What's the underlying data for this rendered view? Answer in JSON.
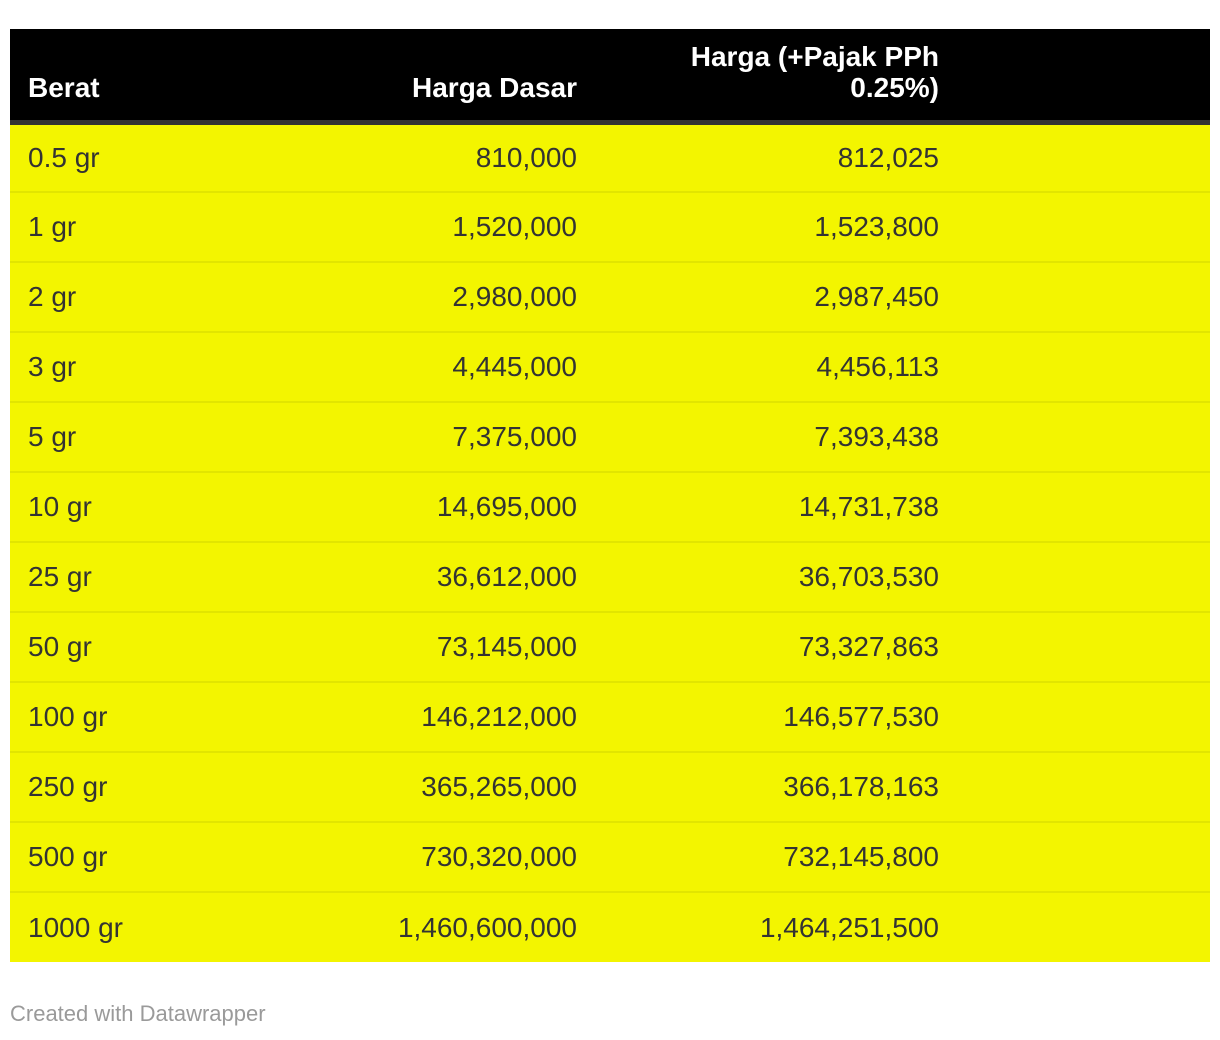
{
  "table": {
    "columns": [
      {
        "label": "Berat",
        "align": "left"
      },
      {
        "label": "Harga Dasar",
        "align": "right"
      },
      {
        "label": "Harga (+Pajak PPh\n0.25%)",
        "align": "right"
      }
    ],
    "rows": [
      {
        "berat": "0.5 gr",
        "harga_dasar": "810,000",
        "harga_pajak": "812,025"
      },
      {
        "berat": "1 gr",
        "harga_dasar": "1,520,000",
        "harga_pajak": "1,523,800"
      },
      {
        "berat": "2 gr",
        "harga_dasar": "2,980,000",
        "harga_pajak": "2,987,450"
      },
      {
        "berat": "3 gr",
        "harga_dasar": "4,445,000",
        "harga_pajak": "4,456,113"
      },
      {
        "berat": "5 gr",
        "harga_dasar": "7,375,000",
        "harga_pajak": "7,393,438"
      },
      {
        "berat": "10 gr",
        "harga_dasar": "14,695,000",
        "harga_pajak": "14,731,738"
      },
      {
        "berat": "25 gr",
        "harga_dasar": "36,612,000",
        "harga_pajak": "36,703,530"
      },
      {
        "berat": "50 gr",
        "harga_dasar": "73,145,000",
        "harga_pajak": "73,327,863"
      },
      {
        "berat": "100 gr",
        "harga_dasar": "146,212,000",
        "harga_pajak": "146,577,530"
      },
      {
        "berat": "250 gr",
        "harga_dasar": "365,265,000",
        "harga_pajak": "366,178,163"
      },
      {
        "berat": "500 gr",
        "harga_dasar": "730,320,000",
        "harga_pajak": "732,145,800"
      },
      {
        "berat": "1000 gr",
        "harga_dasar": "1,460,600,000",
        "harga_pajak": "1,464,251,500"
      }
    ]
  },
  "footer": {
    "credit": "Created with Datawrapper"
  },
  "colors": {
    "header_bg": "#000000",
    "header_text": "#ffffff",
    "header_border": "#333333",
    "row_bg": "#f3f500",
    "row_separator": "#e2e500",
    "body_text": "#333333",
    "credit_text": "#9a9a9a",
    "page_bg": "#ffffff"
  },
  "chart_data": {
    "type": "table",
    "title": "",
    "columns": [
      "Berat",
      "Harga Dasar",
      "Harga (+Pajak PPh 0.25%)"
    ],
    "rows": [
      [
        "0.5 gr",
        810000,
        812025
      ],
      [
        "1 gr",
        1520000,
        1523800
      ],
      [
        "2 gr",
        2980000,
        2987450
      ],
      [
        "3 gr",
        4445000,
        4456113
      ],
      [
        "5 gr",
        7375000,
        7393438
      ],
      [
        "10 gr",
        14695000,
        14731738
      ],
      [
        "25 gr",
        36612000,
        36703530
      ],
      [
        "50 gr",
        73145000,
        73327863
      ],
      [
        "100 gr",
        146212000,
        146577530
      ],
      [
        "250 gr",
        365265000,
        366178163
      ],
      [
        "500 gr",
        730320000,
        732145800
      ],
      [
        "1000 gr",
        1460600000,
        1464251500
      ]
    ],
    "legend_position": "none",
    "grid": "horizontal-separators-only"
  }
}
